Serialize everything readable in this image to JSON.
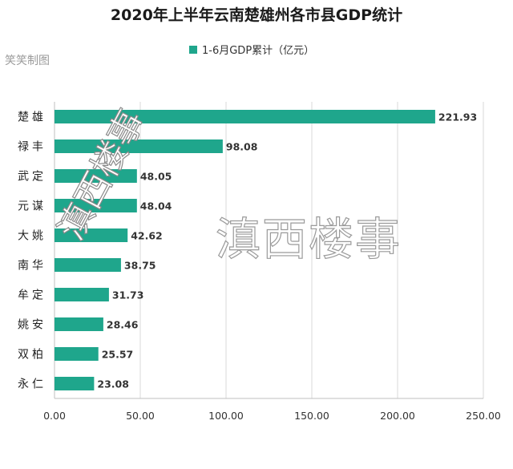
{
  "watermark": {
    "main": "滇西楼事",
    "footer": "头条 @滇西楼事"
  },
  "chart_data": {
    "type": "bar",
    "orientation": "horizontal",
    "title": "2020年上半年云南楚雄州各市县GDP统计",
    "credit": "笑笑制图",
    "legend": {
      "position": "top",
      "entries": [
        "1-6月GDP累计（亿元）"
      ]
    },
    "categories": [
      "楚雄",
      "禄丰",
      "武定",
      "元谋",
      "大姚",
      "南华",
      "牟定",
      "姚安",
      "双柏",
      "永仁"
    ],
    "series": [
      {
        "name": "1-6月GDP累计（亿元）",
        "values": [
          221.93,
          98.08,
          48.05,
          48.04,
          42.62,
          38.75,
          31.73,
          28.46,
          25.57,
          23.08
        ],
        "value_labels": [
          "221.93",
          "98.08",
          "48.05",
          "48.04",
          "42.62",
          "38.75",
          "31.73",
          "28.46",
          "25.57",
          "23.08"
        ]
      }
    ],
    "xlim": [
      0,
      250
    ],
    "xticks": [
      0,
      50,
      100,
      150,
      200,
      250
    ],
    "xtick_labels": [
      "0.00",
      "50.00",
      "100.00",
      "150.00",
      "200.00",
      "250.00"
    ],
    "grid": true,
    "colors": {
      "bar": "#1FA68C",
      "grid": "#d9d9d9",
      "axis": "#bfbfbf"
    }
  }
}
